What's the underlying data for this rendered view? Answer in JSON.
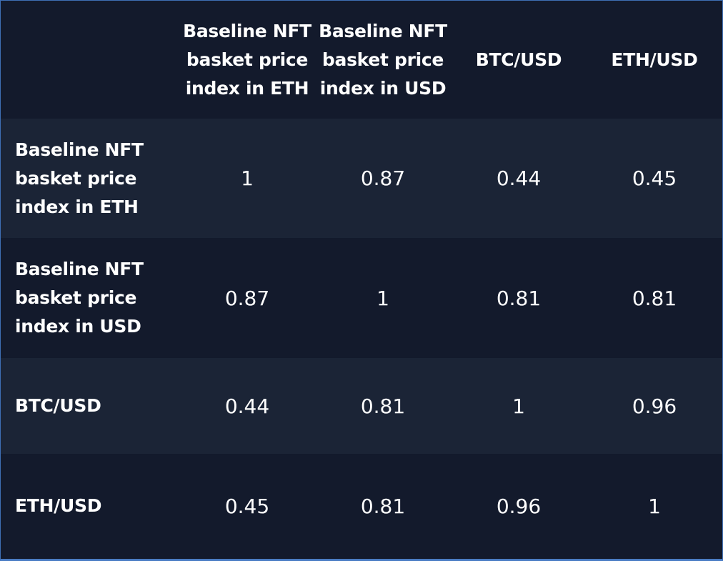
{
  "chart_data": {
    "type": "table",
    "columns": [
      "Baseline NFT basket price index in ETH",
      "Baseline NFT basket price index in USD",
      "BTC/USD",
      "ETH/USD"
    ],
    "rows": [
      {
        "label": "Baseline NFT basket price index in ETH",
        "values": [
          "1",
          "0.87",
          "0.44",
          "0.45"
        ]
      },
      {
        "label": "Baseline NFT basket price index in USD",
        "values": [
          "0.87",
          "1",
          "0.81",
          "0.81"
        ]
      },
      {
        "label": "BTC/USD",
        "values": [
          "0.44",
          "0.81",
          "1",
          "0.96"
        ]
      },
      {
        "label": "ETH/USD",
        "values": [
          "0.45",
          "0.81",
          "0.96",
          "1"
        ]
      }
    ]
  },
  "colors": {
    "background": "#131a2c",
    "stripe": "#1b2436",
    "text": "#ffffff",
    "border": "#3e6fb5"
  }
}
